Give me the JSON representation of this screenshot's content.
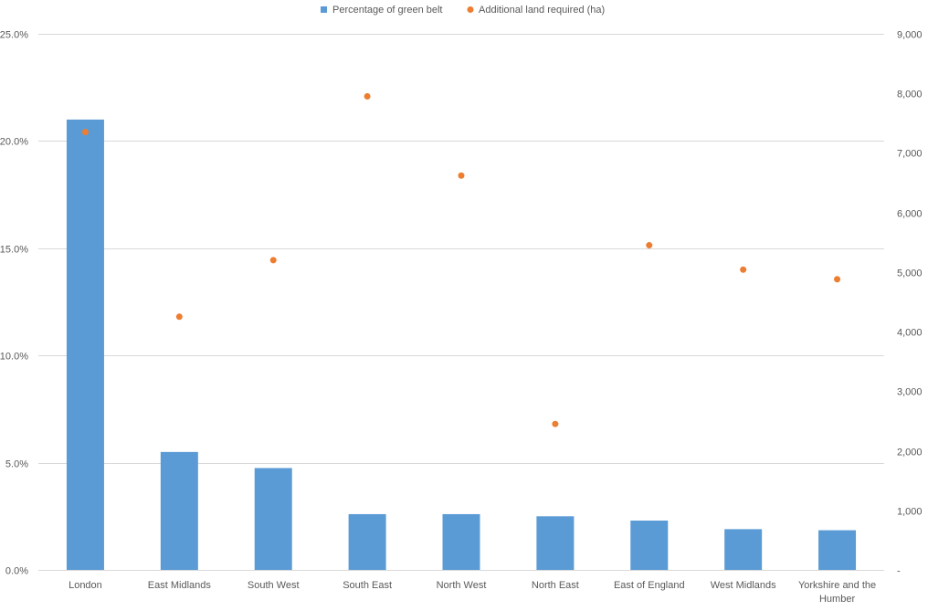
{
  "chart_data": {
    "type": "bar",
    "title": "",
    "xlabel": "",
    "ylabel": "",
    "categories": [
      "London",
      "East Midlands",
      "South West",
      "South East",
      "North West",
      "North East",
      "East of England",
      "West Midlands",
      "Yorkshire and the Humber"
    ],
    "series": [
      {
        "name": "Percentage of green belt",
        "type": "bar",
        "axis": "left",
        "color": "#5B9BD5",
        "values": [
          21.0,
          5.5,
          4.75,
          2.6,
          2.6,
          2.5,
          2.3,
          1.9,
          1.85
        ]
      },
      {
        "name": "Additional land required (ha)",
        "type": "scatter",
        "axis": "right",
        "color": "#ED7D31",
        "values": [
          7350,
          4250,
          5200,
          7950,
          6620,
          2450,
          5450,
          5040,
          4880
        ]
      }
    ],
    "y_left": {
      "ylim": [
        0,
        25
      ],
      "ticks": [
        0,
        5,
        10,
        15,
        20,
        25
      ],
      "tick_labels": [
        "0.0%",
        "5.0%",
        "10.0%",
        "15.0%",
        "20.0%",
        "25.0%"
      ]
    },
    "y_right": {
      "ylim": [
        0,
        9000
      ],
      "ticks": [
        0,
        1000,
        2000,
        3000,
        4000,
        5000,
        6000,
        7000,
        8000,
        9000
      ],
      "tick_labels": [
        "-",
        "1,000",
        "2,000",
        "3,000",
        "4,000",
        "5,000",
        "6,000",
        "7,000",
        "8,000",
        "9,000"
      ]
    },
    "grid": true,
    "legend": "top-center"
  }
}
